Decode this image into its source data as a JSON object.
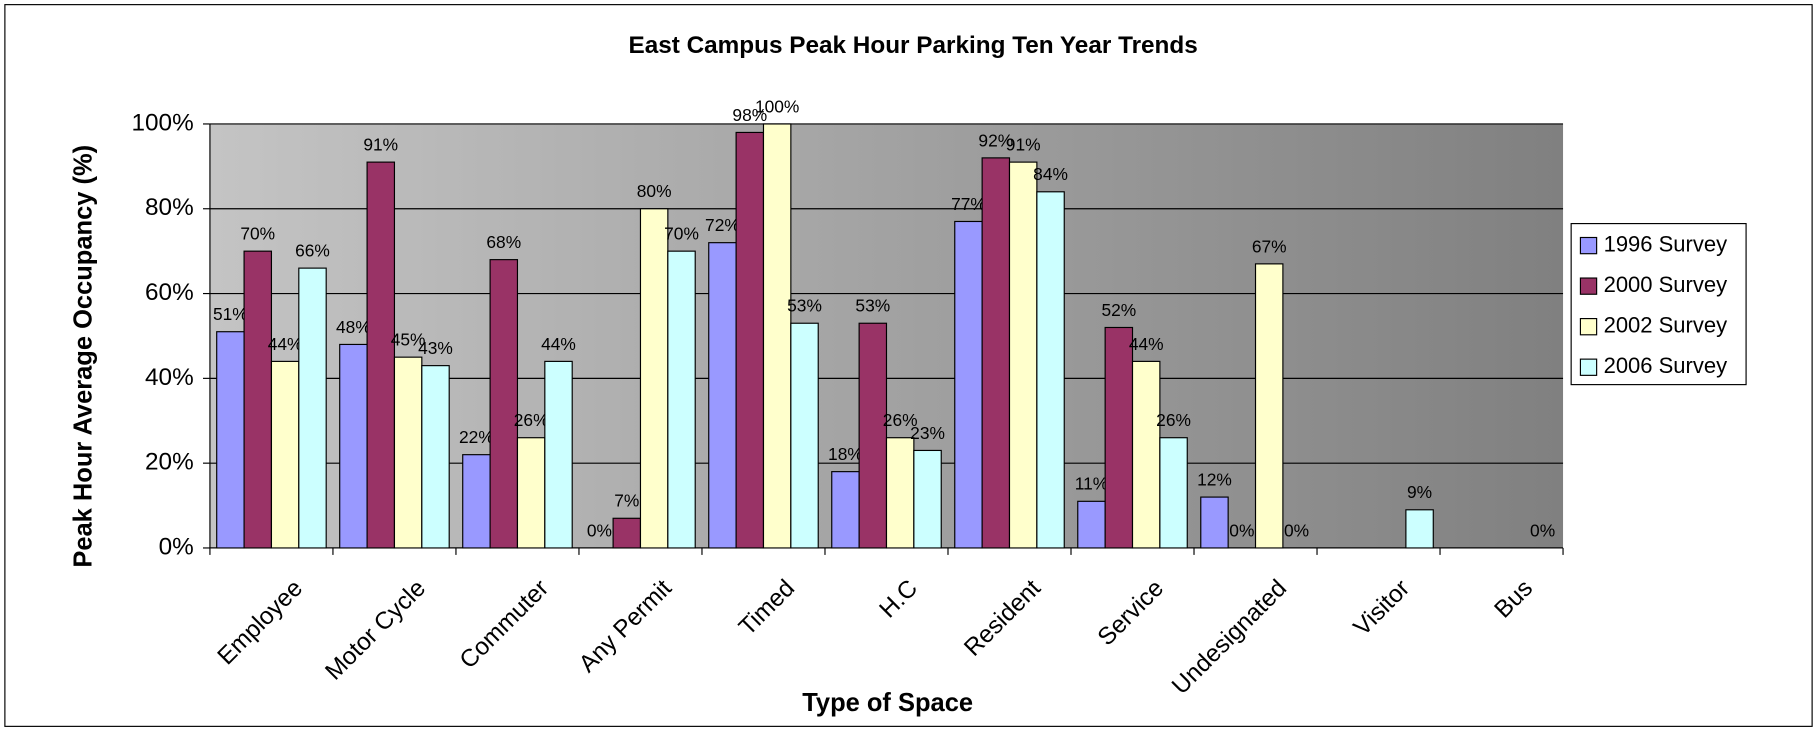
{
  "chart_data": {
    "type": "bar",
    "title": "East Campus Peak Hour Parking Ten Year Trends",
    "x_label": "Type of Space",
    "y_label": "Peak Hour Average Occupancy (%)",
    "categories": [
      "Employee",
      "Motor Cycle",
      "Commuter",
      "Any Permit",
      "Timed",
      "H.C",
      "Resident",
      "Service",
      "Undesignated",
      "Visitor",
      "Bus"
    ],
    "series": [
      {
        "name": "1996 Survey",
        "color": "#9999ff",
        "values": [
          51,
          48,
          22,
          0,
          72,
          18,
          77,
          11,
          12,
          null,
          null
        ],
        "value_labels": [
          "51%",
          "48%",
          "22%",
          "0%",
          "72%",
          "18%",
          "77%",
          "11%",
          "12%",
          null,
          null
        ]
      },
      {
        "name": "2000 Survey",
        "color": "#993366",
        "values": [
          70,
          91,
          68,
          7,
          98,
          53,
          92,
          52,
          0,
          null,
          null
        ],
        "value_labels": [
          "70%",
          "91%",
          "68%",
          "7%",
          "98%",
          "53%",
          "92%",
          "52%",
          "0%",
          null,
          null
        ]
      },
      {
        "name": "2002 Survey",
        "color": "#ffffcc",
        "values": [
          44,
          45,
          26,
          80,
          100,
          26,
          91,
          44,
          67,
          null,
          null
        ],
        "value_labels": [
          "44%",
          "45%",
          "26%",
          "80%",
          "100%",
          "26%",
          "91%",
          "44%",
          "67%",
          null,
          null
        ]
      },
      {
        "name": "2006 Survey",
        "color": "#ccffff",
        "values": [
          66,
          43,
          44,
          70,
          53,
          23,
          84,
          26,
          0,
          9,
          0
        ],
        "value_labels": [
          "66%",
          "43%",
          "44%",
          "70%",
          "53%",
          "23%",
          "84%",
          "26%",
          "0%",
          "9%",
          "0%"
        ]
      }
    ],
    "ylim": [
      0,
      100
    ],
    "yticks": [
      {
        "value": 0,
        "label": "0%"
      },
      {
        "value": 20,
        "label": "20%"
      },
      {
        "value": 40,
        "label": "40%"
      },
      {
        "value": 60,
        "label": "60%"
      },
      {
        "value": 80,
        "label": "80%"
      },
      {
        "value": 100,
        "label": "100%"
      }
    ],
    "grid": true,
    "legend": "right"
  }
}
